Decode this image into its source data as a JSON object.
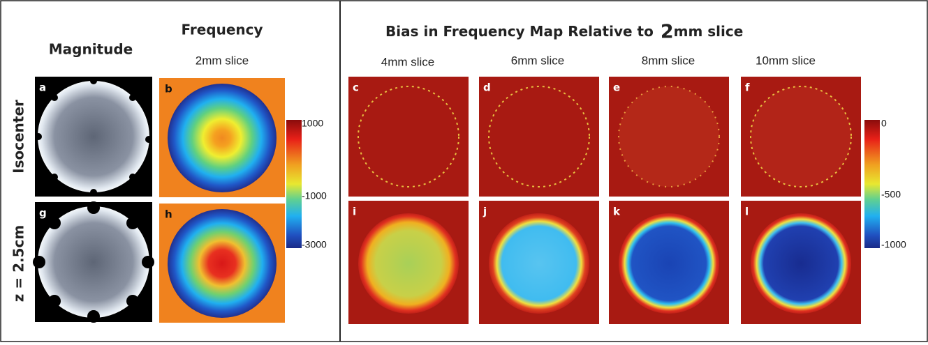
{
  "header": {
    "magnitude": "Magnitude",
    "frequency": "Frequency",
    "frequency_slice": "2mm slice",
    "bias_title": {
      "prefix": "Bias in Frequency Map Relative to",
      "number": "2",
      "suffix": "mm slice"
    }
  },
  "columns": [
    "4mm slice",
    "6mm slice",
    "8mm slice",
    "10mm slice"
  ],
  "rows": [
    "Isocenter",
    "z = 2.5cm"
  ],
  "panels": [
    "a",
    "b",
    "c",
    "d",
    "e",
    "f",
    "g",
    "h",
    "i",
    "j",
    "k",
    "l"
  ],
  "frequency_colorbar": [
    "1000",
    "-1000",
    "-3000"
  ],
  "bias_colorbar": [
    "0",
    "-500",
    "-1000"
  ]
}
